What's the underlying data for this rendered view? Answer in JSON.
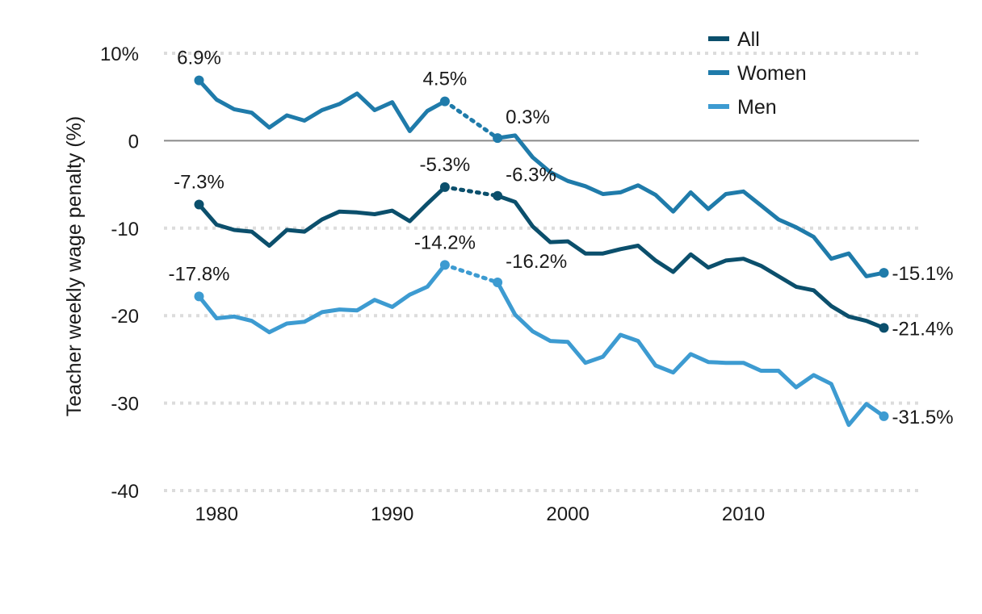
{
  "chart_data": {
    "type": "line",
    "title": "",
    "xlabel": "",
    "ylabel": "Teacher weekly wage penalty (%)",
    "xlim": [
      1977,
      2020
    ],
    "ylim": [
      -40,
      10
    ],
    "x_ticks": [
      {
        "value": 1980,
        "label": "1980"
      },
      {
        "value": 1990,
        "label": "1990"
      },
      {
        "value": 2000,
        "label": "2000"
      },
      {
        "value": 2010,
        "label": "2010"
      }
    ],
    "y_ticks": [
      {
        "value": 10,
        "label": "10%"
      },
      {
        "value": 0,
        "label": "0"
      },
      {
        "value": -10,
        "label": "-10"
      },
      {
        "value": -20,
        "label": "-20"
      },
      {
        "value": -30,
        "label": "-30"
      },
      {
        "value": -40,
        "label": "-40"
      }
    ],
    "grid": "horizontal dotted",
    "zero_line": true,
    "legend_position": "top-right",
    "gap_years": [
      1993,
      1996
    ],
    "series": [
      {
        "name": "All",
        "color": "#0b4f6c",
        "x": [
          1979,
          1980,
          1981,
          1982,
          1983,
          1984,
          1985,
          1986,
          1987,
          1988,
          1989,
          1990,
          1991,
          1992,
          1993,
          1996,
          1997,
          1998,
          1999,
          2000,
          2001,
          2002,
          2003,
          2004,
          2005,
          2006,
          2007,
          2008,
          2009,
          2010,
          2011,
          2012,
          2013,
          2014,
          2015,
          2016,
          2017,
          2018
        ],
        "y": [
          -7.3,
          -9.6,
          -10.2,
          -10.4,
          -12.0,
          -10.2,
          -10.4,
          -9.0,
          -8.1,
          -8.2,
          -8.4,
          -8.0,
          -9.2,
          -7.2,
          -5.3,
          -6.3,
          -7.0,
          -9.8,
          -11.6,
          -11.5,
          -12.9,
          -12.9,
          -12.4,
          -12.0,
          -13.7,
          -15.0,
          -13.0,
          -14.5,
          -13.7,
          -13.5,
          -14.3,
          -15.5,
          -16.7,
          -17.1,
          -18.9,
          -20.1,
          -20.6,
          -21.4
        ],
        "endpoint_labels": [
          {
            "x": 1979,
            "y": -7.3,
            "label": "-7.3%"
          },
          {
            "x": 1993,
            "y": -5.3,
            "label": "-5.3%"
          },
          {
            "x": 1996,
            "y": -6.3,
            "label": "-6.3%"
          },
          {
            "x": 2018,
            "y": -21.4,
            "label": "-21.4%"
          }
        ]
      },
      {
        "name": "Women",
        "color": "#1f7baa",
        "x": [
          1979,
          1980,
          1981,
          1982,
          1983,
          1984,
          1985,
          1986,
          1987,
          1988,
          1989,
          1990,
          1991,
          1992,
          1993,
          1996,
          1997,
          1998,
          1999,
          2000,
          2001,
          2002,
          2003,
          2004,
          2005,
          2006,
          2007,
          2008,
          2009,
          2010,
          2011,
          2012,
          2013,
          2014,
          2015,
          2016,
          2017,
          2018
        ],
        "y": [
          6.9,
          4.7,
          3.6,
          3.2,
          1.5,
          2.9,
          2.3,
          3.5,
          4.2,
          5.4,
          3.5,
          4.4,
          1.1,
          3.4,
          4.5,
          0.3,
          0.6,
          -1.9,
          -3.6,
          -4.6,
          -5.2,
          -6.1,
          -5.9,
          -5.1,
          -6.2,
          -8.1,
          -5.9,
          -7.8,
          -6.1,
          -5.8,
          -7.4,
          -9.0,
          -9.9,
          -11.0,
          -13.5,
          -12.9,
          -15.5,
          -15.1
        ],
        "endpoint_labels": [
          {
            "x": 1979,
            "y": 6.9,
            "label": "6.9%"
          },
          {
            "x": 1993,
            "y": 4.5,
            "label": "4.5%"
          },
          {
            "x": 1996,
            "y": 0.3,
            "label": "0.3%"
          },
          {
            "x": 2018,
            "y": -15.1,
            "label": "-15.1%"
          }
        ]
      },
      {
        "name": "Men",
        "color": "#3d9bd1",
        "x": [
          1979,
          1980,
          1981,
          1982,
          1983,
          1984,
          1985,
          1986,
          1987,
          1988,
          1989,
          1990,
          1991,
          1992,
          1993,
          1996,
          1997,
          1998,
          1999,
          2000,
          2001,
          2002,
          2003,
          2004,
          2005,
          2006,
          2007,
          2008,
          2009,
          2010,
          2011,
          2012,
          2013,
          2014,
          2015,
          2016,
          2017,
          2018
        ],
        "y": [
          -17.8,
          -20.3,
          -20.1,
          -20.6,
          -21.9,
          -20.9,
          -20.7,
          -19.6,
          -19.3,
          -19.4,
          -18.2,
          -19.0,
          -17.6,
          -16.7,
          -14.2,
          -16.2,
          -19.9,
          -21.8,
          -22.9,
          -23.0,
          -25.4,
          -24.7,
          -22.2,
          -22.9,
          -25.7,
          -26.5,
          -24.4,
          -25.3,
          -25.4,
          -25.4,
          -26.3,
          -26.3,
          -28.2,
          -26.8,
          -27.8,
          -32.5,
          -30.1,
          -31.5
        ],
        "endpoint_labels": [
          {
            "x": 1979,
            "y": -17.8,
            "label": "-17.8%"
          },
          {
            "x": 1993,
            "y": -14.2,
            "label": "-14.2%"
          },
          {
            "x": 1996,
            "y": -16.2,
            "label": "-16.2%"
          },
          {
            "x": 2018,
            "y": -31.5,
            "label": "-31.5%"
          }
        ]
      }
    ]
  }
}
